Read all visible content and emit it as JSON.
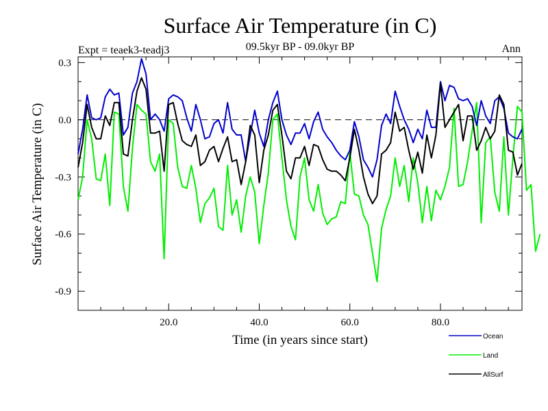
{
  "chart_data": {
    "type": "line",
    "title": "Surface Air Temperature (in C)",
    "subtitle": "09.5kyr BP - 09.0kyr BP",
    "left_label": "Expt = teaek3-teadj3",
    "right_label": "Ann",
    "xlabel": "Time (in years since start)",
    "ylabel": "Surface Air Temperature (in C)",
    "xlim": [
      0,
      98
    ],
    "ylim": [
      -1.0,
      0.33
    ],
    "x_ticks": [
      {
        "value": 20,
        "label": "20.0"
      },
      {
        "value": 40,
        "label": "40.0"
      },
      {
        "value": 60,
        "label": "60.0"
      },
      {
        "value": 80,
        "label": "80.0"
      }
    ],
    "y_ticks": [
      {
        "value": 0.3,
        "label": "0.3"
      },
      {
        "value": 0.0,
        "label": "0.0"
      },
      {
        "value": -0.3,
        "label": "-0.3"
      },
      {
        "value": -0.6,
        "label": "-0.6"
      },
      {
        "value": -0.9,
        "label": "-0.9"
      }
    ],
    "zero_line": "dashed",
    "series": [
      {
        "name": "Ocean",
        "color": "#0000cc",
        "values": [
          -0.18,
          -0.05,
          0.13,
          0.01,
          0.0,
          0.01,
          0.12,
          0.16,
          0.13,
          0.14,
          -0.08,
          -0.04,
          0.14,
          0.2,
          0.32,
          0.24,
          0.0,
          0.03,
          0.0,
          -0.06,
          0.11,
          0.13,
          0.12,
          0.1,
          0.01,
          -0.06,
          0.08,
          0.0,
          -0.1,
          -0.09,
          -0.02,
          0.0,
          -0.07,
          0.09,
          -0.05,
          -0.08,
          -0.08,
          -0.22,
          -0.08,
          0.05,
          -0.07,
          -0.14,
          0.0,
          0.09,
          0.15,
          0.0,
          -0.08,
          -0.13,
          -0.07,
          -0.07,
          -0.02,
          -0.1,
          -0.01,
          0.04,
          -0.05,
          -0.09,
          -0.12,
          -0.16,
          -0.19,
          -0.21,
          -0.16,
          -0.01,
          -0.09,
          -0.21,
          -0.25,
          -0.3,
          -0.21,
          -0.03,
          0.03,
          -0.02,
          0.15,
          0.07,
          0.0,
          -0.05,
          -0.12,
          -0.05,
          -0.1,
          0.05,
          -0.04,
          -0.04,
          0.2,
          0.1,
          0.18,
          0.17,
          0.11,
          0.1,
          0.11,
          0.07,
          -0.03,
          0.1,
          0.02,
          -0.02,
          0.1,
          0.12,
          0.06,
          -0.07,
          -0.09,
          -0.1,
          -0.05
        ]
      },
      {
        "name": "Land",
        "color": "#00ee00",
        "values": [
          -0.42,
          -0.3,
          0.0,
          -0.1,
          -0.31,
          -0.32,
          -0.18,
          -0.45,
          0.04,
          0.03,
          -0.35,
          -0.48,
          -0.15,
          0.08,
          0.05,
          0.03,
          -0.22,
          -0.27,
          -0.18,
          -0.73,
          0.0,
          -0.02,
          -0.25,
          -0.35,
          -0.36,
          -0.24,
          -0.36,
          -0.54,
          -0.44,
          -0.41,
          -0.36,
          -0.56,
          -0.58,
          -0.24,
          -0.5,
          -0.42,
          -0.59,
          -0.4,
          -0.3,
          -0.38,
          -0.65,
          -0.45,
          -0.28,
          0.0,
          0.03,
          -0.2,
          -0.42,
          -0.56,
          -0.63,
          -0.3,
          -0.2,
          -0.42,
          -0.48,
          -0.34,
          -0.49,
          -0.55,
          -0.52,
          -0.51,
          -0.43,
          -0.44,
          -0.17,
          -0.39,
          -0.4,
          -0.5,
          -0.55,
          -0.7,
          -0.85,
          -0.57,
          -0.47,
          -0.4,
          -0.2,
          -0.35,
          -0.24,
          -0.43,
          -0.2,
          -0.33,
          -0.54,
          -0.35,
          -0.53,
          -0.37,
          -0.42,
          -0.35,
          -0.25,
          0.06,
          -0.35,
          -0.34,
          -0.22,
          -0.06,
          0.09,
          -0.54,
          -0.12,
          -0.09,
          -0.38,
          -0.48,
          -0.09,
          -0.5,
          -0.2,
          0.07,
          0.04,
          -0.37,
          -0.34,
          -0.69,
          -0.6
        ]
      },
      {
        "name": "AllSurf",
        "color": "#000000",
        "values": [
          -0.25,
          -0.12,
          0.08,
          -0.04,
          -0.1,
          -0.1,
          0.02,
          -0.03,
          0.09,
          0.09,
          -0.18,
          -0.19,
          0.0,
          0.15,
          0.22,
          0.16,
          -0.07,
          -0.07,
          -0.06,
          -0.27,
          0.08,
          0.09,
          -0.02,
          -0.11,
          -0.13,
          -0.14,
          -0.08,
          -0.24,
          -0.22,
          -0.16,
          -0.14,
          -0.22,
          -0.15,
          -0.09,
          -0.22,
          -0.21,
          -0.34,
          -0.22,
          -0.03,
          -0.08,
          -0.33,
          -0.16,
          -0.08,
          0.05,
          0.08,
          -0.08,
          -0.27,
          -0.31,
          -0.2,
          -0.2,
          -0.14,
          -0.24,
          -0.13,
          -0.14,
          -0.21,
          -0.26,
          -0.27,
          -0.27,
          -0.29,
          -0.32,
          -0.2,
          -0.05,
          -0.16,
          -0.3,
          -0.39,
          -0.44,
          -0.4,
          -0.18,
          -0.16,
          -0.12,
          0.04,
          -0.06,
          -0.04,
          -0.16,
          -0.26,
          -0.17,
          -0.28,
          -0.08,
          -0.2,
          -0.08,
          0.19,
          -0.04,
          0.0,
          0.04,
          0.08,
          -0.11,
          0.02,
          0.02,
          -0.16,
          -0.11,
          -0.04,
          -0.1,
          -0.06,
          0.13,
          0.08,
          -0.16,
          -0.17,
          -0.29,
          -0.23
        ]
      }
    ]
  }
}
